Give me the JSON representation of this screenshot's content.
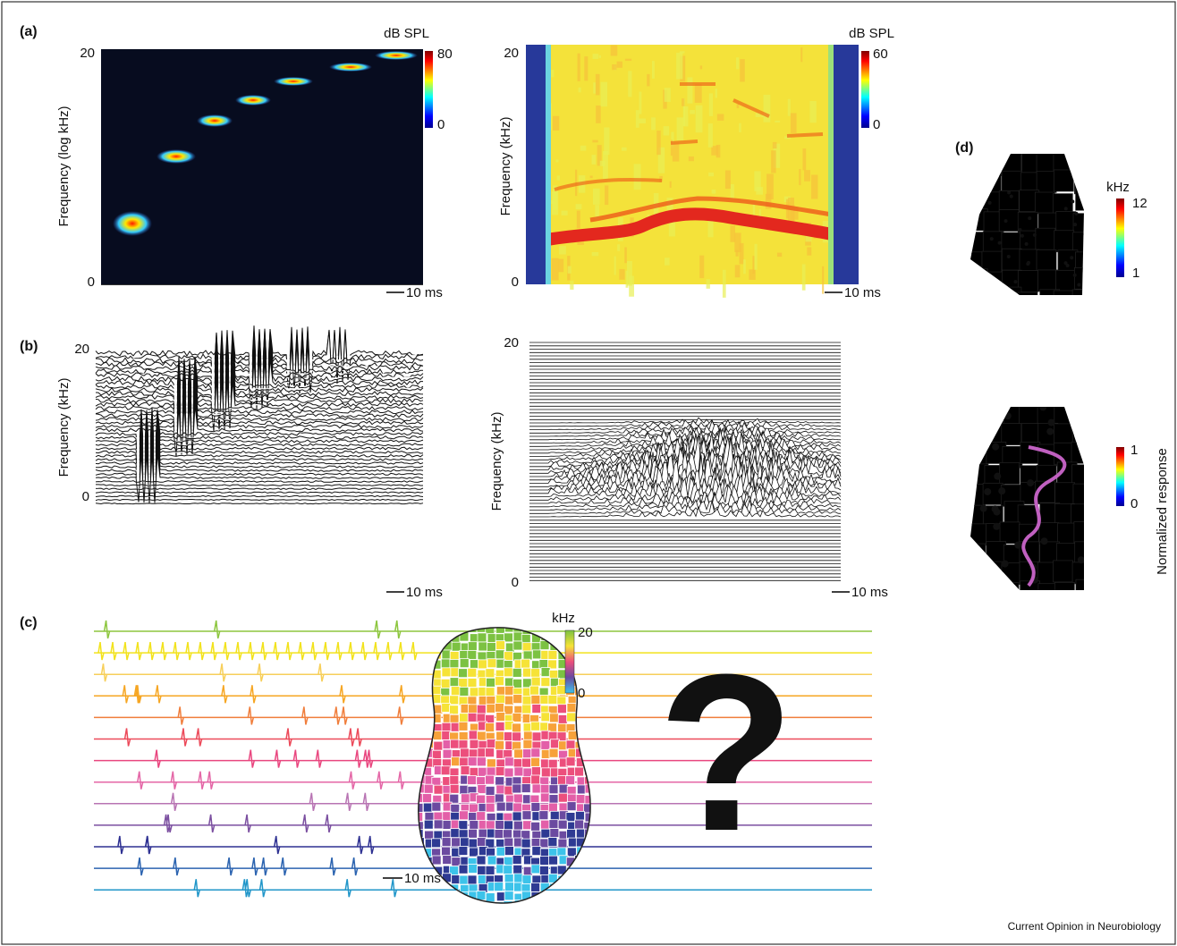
{
  "panels": {
    "a": {
      "label": "(a)",
      "left": {
        "colorbar_title": "dB SPL",
        "colorbar_ticks": [
          "80",
          "0"
        ],
        "y_label": "Frequency (log kHz)",
        "y_ticks": [
          "20",
          "0"
        ],
        "scale_bar": "10 ms"
      },
      "right": {
        "colorbar_title": "dB SPL",
        "colorbar_ticks": [
          "60",
          "0"
        ],
        "y_label": "Frequency (kHz)",
        "y_ticks": [
          "20",
          "0"
        ],
        "scale_bar": "10 ms"
      }
    },
    "b": {
      "label": "(b)",
      "left": {
        "y_label": "Frequency (kHz)",
        "y_ticks": [
          "20",
          "0"
        ],
        "scale_bar": "10 ms"
      },
      "right": {
        "y_label": "Frequency (kHz)",
        "y_ticks": [
          "20",
          "0"
        ],
        "scale_bar": "10 ms"
      }
    },
    "c": {
      "label": "(c)",
      "colorbar_title": "kHz",
      "colorbar_ticks": [
        "20",
        "0"
      ],
      "symbol": "?",
      "scale_bar": "10 ms"
    },
    "d": {
      "label": "(d)",
      "top": {
        "colorbar_title": "kHz",
        "colorbar_ticks": [
          "12",
          "1"
        ]
      },
      "bottom": {
        "colorbar_title": "Normalized response",
        "colorbar_ticks": [
          "1",
          "0"
        ]
      }
    }
  },
  "footer": "Current Opinion in Neurobiology"
}
